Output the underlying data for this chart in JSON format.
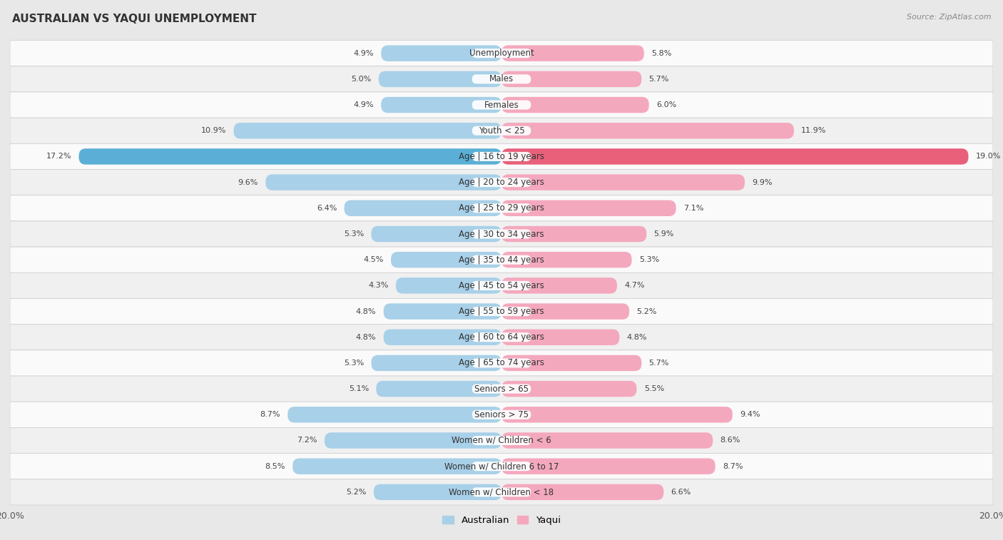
{
  "title": "AUSTRALIAN VS YAQUI UNEMPLOYMENT",
  "source": "Source: ZipAtlas.com",
  "categories": [
    "Unemployment",
    "Males",
    "Females",
    "Youth < 25",
    "Age | 16 to 19 years",
    "Age | 20 to 24 years",
    "Age | 25 to 29 years",
    "Age | 30 to 34 years",
    "Age | 35 to 44 years",
    "Age | 45 to 54 years",
    "Age | 55 to 59 years",
    "Age | 60 to 64 years",
    "Age | 65 to 74 years",
    "Seniors > 65",
    "Seniors > 75",
    "Women w/ Children < 6",
    "Women w/ Children 6 to 17",
    "Women w/ Children < 18"
  ],
  "australian": [
    4.9,
    5.0,
    4.9,
    10.9,
    17.2,
    9.6,
    6.4,
    5.3,
    4.5,
    4.3,
    4.8,
    4.8,
    5.3,
    5.1,
    8.7,
    7.2,
    8.5,
    5.2
  ],
  "yaqui": [
    5.8,
    5.7,
    6.0,
    11.9,
    19.0,
    9.9,
    7.1,
    5.9,
    5.3,
    4.7,
    5.2,
    4.8,
    5.7,
    5.5,
    9.4,
    8.6,
    8.7,
    6.6
  ],
  "australian_color": "#a8d0e8",
  "yaqui_color": "#f4a8be",
  "highlight_australian_color": "#5bafd6",
  "highlight_yaqui_color": "#e8607a",
  "background_color": "#e8e8e8",
  "row_bg_even": "#f0f0f0",
  "row_bg_odd": "#fafafa",
  "bar_height": 0.62,
  "x_max": 20.0,
  "highlight_rows": [
    4
  ],
  "legend_australian": "Australian",
  "legend_yaqui": "Yaqui",
  "label_fontsize": 8.5,
  "value_fontsize": 8.0,
  "title_fontsize": 11
}
